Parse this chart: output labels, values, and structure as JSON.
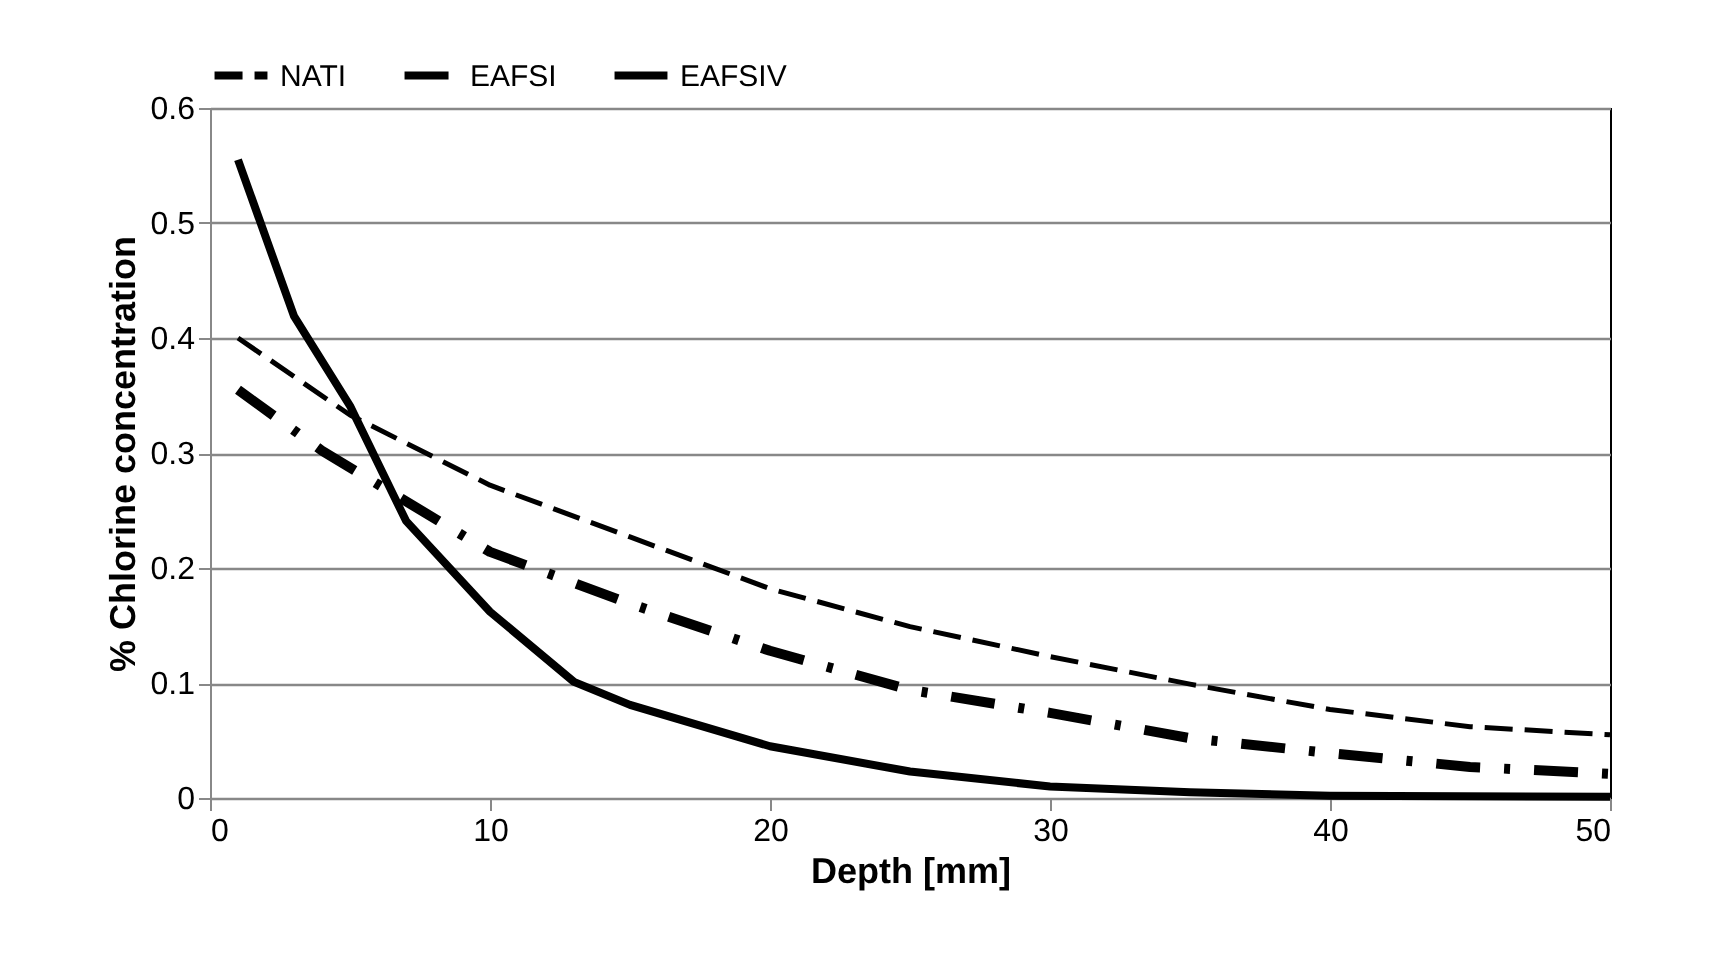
{
  "chart_data": {
    "type": "line",
    "xlabel": "Depth [mm]",
    "ylabel": "% Chlorine concentration",
    "xlim": [
      0,
      50
    ],
    "xticks": [
      0,
      10,
      20,
      30,
      40,
      50
    ],
    "ylim": [
      0,
      0.6
    ],
    "yticks": [
      0,
      0.1,
      0.2,
      0.3,
      0.4,
      0.5,
      0.6
    ],
    "grid": "y",
    "legend": "top",
    "marker": "none",
    "series": [
      {
        "name": "NATI",
        "color": "#000000",
        "line_style": "dashed",
        "x": [
          1,
          5,
          10,
          15,
          20,
          25,
          30,
          35,
          40,
          45,
          50
        ],
        "values": [
          0.4,
          0.333,
          0.272,
          0.227,
          0.182,
          0.149,
          0.123,
          0.099,
          0.077,
          0.062,
          0.055
        ]
      },
      {
        "name": "EAFSI",
        "color": "#000000",
        "line_style": "dashed",
        "x": [
          1,
          4,
          10,
          15,
          20,
          25,
          30,
          35,
          40,
          45,
          50
        ],
        "values": [
          0.355,
          0.302,
          0.214,
          0.169,
          0.128,
          0.094,
          0.074,
          0.052,
          0.039,
          0.027,
          0.021
        ]
      },
      {
        "name": "EAFSIV",
        "color": "#000000",
        "line_style": "solid",
        "x": [
          1,
          3,
          5,
          7,
          10,
          13,
          15,
          20,
          25,
          30,
          35,
          40,
          50
        ],
        "values": [
          0.555,
          0.419,
          0.341,
          0.241,
          0.162,
          0.101,
          0.081,
          0.045,
          0.023,
          0.01,
          0.005,
          0.002,
          0.001
        ]
      }
    ]
  }
}
